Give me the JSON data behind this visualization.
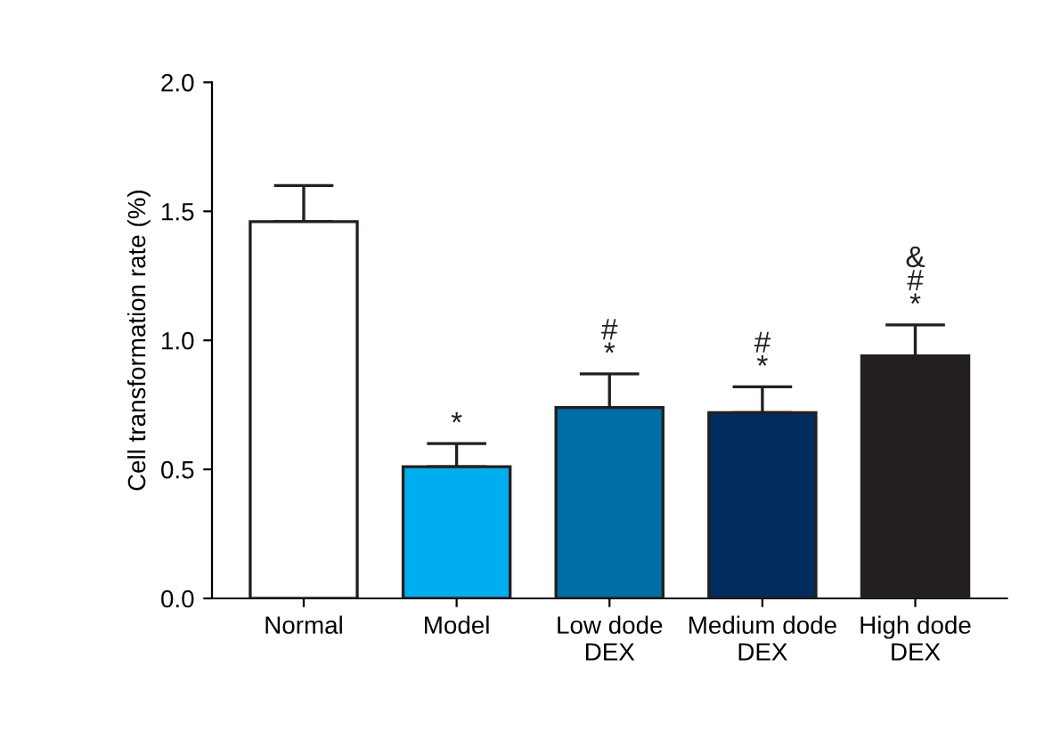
{
  "chart_data": {
    "type": "bar",
    "ylabel": "Cell transformation rate (%)",
    "categories": [
      "Normal",
      "Model",
      "Low dode\nDEX",
      "Medium dode\nDEX",
      "High dode\nDEX"
    ],
    "values": [
      1.46,
      0.51,
      0.74,
      0.72,
      0.94
    ],
    "colors": [
      "#ffffff",
      "#00aeef",
      "#006ea6",
      "#002b5c",
      "#231f20"
    ],
    "errors": [
      [
        1.46,
        1.6
      ],
      [
        0.51,
        0.6
      ],
      [
        0.74,
        0.87
      ],
      [
        0.72,
        0.82
      ],
      [
        0.94,
        1.06
      ]
    ],
    "ylim": [
      0,
      2.0
    ],
    "yticks": [
      {
        "value": 0,
        "label": "0.0"
      },
      {
        "value": 0.5,
        "label": "0.5"
      },
      {
        "value": 1.0,
        "label": "1.0"
      },
      {
        "value": 1.5,
        "label": "1.5"
      },
      {
        "value": 2.0,
        "label": "2.0"
      }
    ],
    "grid": false,
    "value_labels": [
      null,
      "*",
      "#\n*",
      "#\n*",
      "&\n#\n*"
    ]
  }
}
